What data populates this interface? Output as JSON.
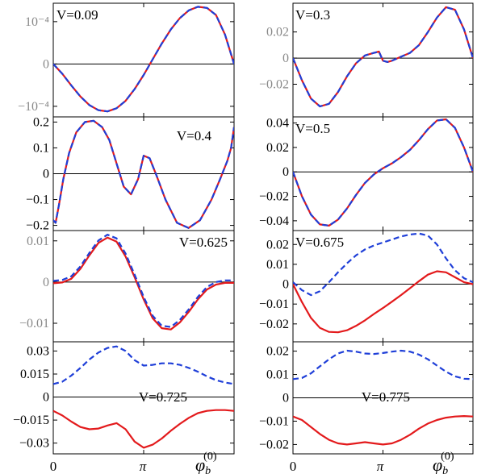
{
  "figure": {
    "xlabel_main": "φ",
    "xlabel_sub": "b",
    "xlabel_sup": "(0)",
    "x_ticks": [
      "0",
      "π"
    ]
  },
  "colors": {
    "solid": "#e31a1c",
    "dashed": "#1f3fd8",
    "axis": "#000000",
    "tick_gray": "#888888"
  },
  "chart_data": [
    {
      "type": "line",
      "label": "V=0.09",
      "ylim": [
        -0.00135,
        0.00155
      ],
      "yticks": [
        {
          "v": 0.00108,
          "label": "10^-4",
          "gray": true
        },
        {
          "v": 0,
          "label": "0",
          "gray": true
        },
        {
          "v": -0.00108,
          "label": "-10^-4",
          "gray": true
        }
      ],
      "x": [
        0,
        0.314,
        0.628,
        0.942,
        1.257,
        1.571,
        1.885,
        2.199,
        2.513,
        2.827,
        3.142,
        3.456,
        3.77,
        4.084,
        4.398,
        4.712,
        5.027,
        5.341,
        5.655,
        5.969,
        6.283
      ],
      "series": [
        {
          "style": "solid",
          "values": [
            0,
            -0.00025,
            -0.00055,
            -0.00083,
            -0.00105,
            -0.00118,
            -0.00121,
            -0.00113,
            -0.00094,
            -0.00064,
            -0.00028,
            0.00012,
            0.00052,
            0.00088,
            0.00117,
            0.00137,
            0.00146,
            0.00143,
            0.00125,
            0.00075,
            0
          ]
        },
        {
          "style": "dashed",
          "values": [
            0,
            -0.00025,
            -0.00055,
            -0.00083,
            -0.00105,
            -0.00118,
            -0.00121,
            -0.00113,
            -0.00094,
            -0.00064,
            -0.00028,
            0.00012,
            0.00052,
            0.00088,
            0.00117,
            0.00137,
            0.00146,
            0.00143,
            0.00125,
            0.00075,
            0
          ]
        }
      ]
    },
    {
      "type": "line",
      "label": "V=0.3",
      "ylim": [
        -0.045,
        0.042
      ],
      "yticks": [
        {
          "v": 0.02,
          "label": "0.02",
          "gray": true
        },
        {
          "v": 0,
          "label": "0",
          "gray": true
        },
        {
          "v": -0.02,
          "label": "-0.02",
          "gray": true
        }
      ],
      "x": [
        0,
        0.314,
        0.628,
        0.942,
        1.257,
        1.571,
        1.885,
        2.199,
        2.513,
        2.827,
        3.0,
        3.142,
        3.3,
        3.456,
        3.77,
        4.084,
        4.398,
        4.712,
        5.027,
        5.341,
        5.655,
        5.969,
        6.283
      ],
      "series": [
        {
          "style": "solid",
          "values": [
            0,
            -0.017,
            -0.031,
            -0.037,
            -0.035,
            -0.026,
            -0.014,
            -0.004,
            0.002,
            0.004,
            0.005,
            -0.002,
            -0.003,
            -0.002,
            0.001,
            0.004,
            0.01,
            0.02,
            0.031,
            0.039,
            0.037,
            0.022,
            0
          ]
        },
        {
          "style": "dashed",
          "values": [
            0,
            -0.017,
            -0.031,
            -0.037,
            -0.035,
            -0.026,
            -0.014,
            -0.004,
            0.002,
            0.004,
            0.005,
            -0.002,
            -0.003,
            -0.002,
            0.001,
            0.004,
            0.01,
            0.02,
            0.031,
            0.039,
            0.037,
            0.022,
            0
          ]
        }
      ]
    },
    {
      "type": "line",
      "label": "V=0.4",
      "ylim": [
        -0.22,
        0.22
      ],
      "yticks": [
        {
          "v": 0.2,
          "label": "0.2"
        },
        {
          "v": 0.1,
          "label": "0.1"
        },
        {
          "v": 0,
          "label": "0"
        },
        {
          "v": -0.1,
          "label": "-0.1"
        },
        {
          "v": -0.2,
          "label": "-0.2"
        }
      ],
      "x": [
        0,
        0.08,
        0.2,
        0.35,
        0.55,
        0.8,
        1.1,
        1.4,
        1.7,
        1.95,
        2.2,
        2.45,
        2.7,
        2.95,
        3.142,
        3.35,
        3.6,
        3.9,
        4.3,
        4.7,
        5.1,
        5.5,
        5.8,
        6.05,
        6.18,
        6.283
      ],
      "series": [
        {
          "style": "solid",
          "values": [
            -0.18,
            -0.19,
            -0.12,
            -0.02,
            0.08,
            0.16,
            0.2,
            0.205,
            0.18,
            0.13,
            0.04,
            -0.05,
            -0.08,
            -0.02,
            0.07,
            0.06,
            -0.01,
            -0.1,
            -0.19,
            -0.21,
            -0.18,
            -0.1,
            -0.02,
            0.05,
            0.1,
            0.18
          ]
        },
        {
          "style": "dashed",
          "values": [
            -0.18,
            -0.19,
            -0.12,
            -0.02,
            0.08,
            0.16,
            0.2,
            0.205,
            0.18,
            0.13,
            0.04,
            -0.05,
            -0.08,
            -0.02,
            0.07,
            0.06,
            -0.01,
            -0.1,
            -0.19,
            -0.21,
            -0.18,
            -0.1,
            -0.02,
            0.05,
            0.1,
            0.18
          ]
        }
      ]
    },
    {
      "type": "line",
      "label": "V=0.5",
      "ylim": [
        -0.048,
        0.045
      ],
      "yticks": [
        {
          "v": 0.04,
          "label": "0.04"
        },
        {
          "v": 0.02,
          "label": "0.02"
        },
        {
          "v": 0,
          "label": "0"
        },
        {
          "v": -0.02,
          "label": "-0.02"
        },
        {
          "v": -0.04,
          "label": "-0.04"
        }
      ],
      "x": [
        0,
        0.314,
        0.628,
        0.942,
        1.257,
        1.571,
        1.885,
        2.199,
        2.513,
        2.827,
        3.142,
        3.456,
        3.77,
        4.084,
        4.398,
        4.712,
        5.027,
        5.341,
        5.655,
        5.969,
        6.283
      ],
      "series": [
        {
          "style": "solid",
          "values": [
            0,
            -0.02,
            -0.035,
            -0.043,
            -0.044,
            -0.039,
            -0.03,
            -0.019,
            -0.009,
            -0.002,
            0.003,
            0.007,
            0.012,
            0.018,
            0.026,
            0.035,
            0.042,
            0.043,
            0.036,
            0.02,
            0
          ]
        },
        {
          "style": "dashed",
          "values": [
            0,
            -0.02,
            -0.035,
            -0.043,
            -0.044,
            -0.039,
            -0.03,
            -0.019,
            -0.009,
            -0.002,
            0.003,
            0.007,
            0.012,
            0.018,
            0.026,
            0.035,
            0.042,
            0.043,
            0.036,
            0.02,
            0
          ]
        }
      ]
    },
    {
      "type": "line",
      "label": "V=0.625",
      "ylim": [
        -0.0145,
        0.0125
      ],
      "yticks": [
        {
          "v": 0.01,
          "label": "0.01",
          "gray": true
        },
        {
          "v": 0,
          "label": "0",
          "gray": true
        },
        {
          "v": -0.01,
          "label": "-0.01",
          "gray": true
        }
      ],
      "x": [
        0,
        0.314,
        0.628,
        0.942,
        1.257,
        1.571,
        1.885,
        2.199,
        2.513,
        2.827,
        3.142,
        3.456,
        3.77,
        4.084,
        4.398,
        4.712,
        5.027,
        5.341,
        5.655,
        5.969,
        6.283
      ],
      "series": [
        {
          "style": "solid",
          "values": [
            -0.0003,
            -0.0001,
            0.0008,
            0.0032,
            0.0065,
            0.0095,
            0.0108,
            0.0098,
            0.0062,
            0.0012,
            -0.0042,
            -0.0088,
            -0.0112,
            -0.0115,
            -0.0098,
            -0.0072,
            -0.0042,
            -0.0018,
            -0.0006,
            -0.0002,
            -0.0002
          ]
        },
        {
          "style": "dashed",
          "values": [
            0.0003,
            0.0005,
            0.0014,
            0.0038,
            0.0071,
            0.0101,
            0.0115,
            0.0106,
            0.0069,
            0.0018,
            -0.0036,
            -0.0082,
            -0.0106,
            -0.0109,
            -0.0092,
            -0.0066,
            -0.0036,
            -0.0012,
            0.0,
            0.0004,
            0.0004
          ]
        }
      ]
    },
    {
      "type": "line",
      "label": "V=0.675",
      "ylim": [
        -0.029,
        0.027
      ],
      "yticks": [
        {
          "v": 0.02,
          "label": "0.02"
        },
        {
          "v": 0.01,
          "label": "0.01"
        },
        {
          "v": 0,
          "label": "0"
        },
        {
          "v": -0.01,
          "label": "-0.01"
        },
        {
          "v": -0.02,
          "label": "-0.02"
        }
      ],
      "x": [
        0,
        0.314,
        0.628,
        0.942,
        1.257,
        1.571,
        1.885,
        2.199,
        2.513,
        2.827,
        3.142,
        3.456,
        3.77,
        4.084,
        4.398,
        4.712,
        5.027,
        5.341,
        5.655,
        5.969,
        6.283
      ],
      "series": [
        {
          "style": "solid",
          "values": [
            0,
            -0.009,
            -0.017,
            -0.022,
            -0.024,
            -0.0242,
            -0.0232,
            -0.021,
            -0.0182,
            -0.015,
            -0.012,
            -0.0088,
            -0.0055,
            -0.002,
            0.0015,
            0.0048,
            0.0065,
            0.006,
            0.0035,
            0.001,
            0
          ]
        },
        {
          "style": "dashed",
          "values": [
            0.001,
            -0.003,
            -0.0055,
            -0.0035,
            0.001,
            0.006,
            0.0105,
            0.0145,
            0.0175,
            0.0195,
            0.021,
            0.0225,
            0.024,
            0.025,
            0.0255,
            0.0245,
            0.02,
            0.013,
            0.007,
            0.003,
            0.001
          ]
        }
      ]
    },
    {
      "type": "line",
      "label": "V=0.725",
      "ylim": [
        -0.037,
        0.036
      ],
      "split_panel": true,
      "yticks": [
        {
          "v": 0.03,
          "label": "0.03"
        },
        {
          "v": 0.015,
          "label": "0.015"
        },
        {
          "v": 0,
          "label": "0"
        },
        {
          "v": -0.015,
          "label": "-0.015"
        },
        {
          "v": -0.03,
          "label": "-0.03"
        }
      ],
      "x": [
        0,
        0.314,
        0.628,
        0.942,
        1.257,
        1.571,
        1.885,
        2.199,
        2.513,
        2.827,
        3.142,
        3.456,
        3.77,
        4.084,
        4.398,
        4.712,
        5.027,
        5.341,
        5.655,
        5.969,
        6.283
      ],
      "series": [
        {
          "style": "solid",
          "values": [
            -0.009,
            -0.012,
            -0.016,
            -0.0195,
            -0.021,
            -0.0205,
            -0.0185,
            -0.017,
            -0.021,
            -0.029,
            -0.033,
            -0.031,
            -0.027,
            -0.022,
            -0.0175,
            -0.0135,
            -0.0105,
            -0.009,
            -0.0085,
            -0.0085,
            -0.009
          ]
        },
        {
          "style": "dashed",
          "values": [
            0.0085,
            0.01,
            0.014,
            0.019,
            0.0245,
            0.029,
            0.032,
            0.033,
            0.03,
            0.024,
            0.0205,
            0.021,
            0.022,
            0.022,
            0.021,
            0.019,
            0.0165,
            0.0135,
            0.011,
            0.0095,
            0.0085
          ]
        }
      ]
    },
    {
      "type": "line",
      "label": "V=0.775",
      "ylim": [
        -0.024,
        0.024
      ],
      "split_panel": true,
      "yticks": [
        {
          "v": 0.02,
          "label": "0.02"
        },
        {
          "v": 0.01,
          "label": "0.01"
        },
        {
          "v": 0,
          "label": "0"
        },
        {
          "v": -0.01,
          "label": "-0.01"
        },
        {
          "v": -0.02,
          "label": "-0.02"
        }
      ],
      "x": [
        0,
        0.314,
        0.628,
        0.942,
        1.257,
        1.571,
        1.885,
        2.199,
        2.513,
        2.827,
        3.142,
        3.456,
        3.77,
        4.084,
        4.398,
        4.712,
        5.027,
        5.341,
        5.655,
        5.969,
        6.283
      ],
      "series": [
        {
          "style": "solid",
          "values": [
            -0.008,
            -0.0095,
            -0.0125,
            -0.0155,
            -0.018,
            -0.0195,
            -0.02,
            -0.0195,
            -0.019,
            -0.0195,
            -0.02,
            -0.0195,
            -0.018,
            -0.0158,
            -0.0132,
            -0.011,
            -0.0095,
            -0.0085,
            -0.008,
            -0.0078,
            -0.008
          ]
        },
        {
          "style": "dashed",
          "values": [
            0.008,
            0.0085,
            0.0105,
            0.0135,
            0.0165,
            0.019,
            0.0202,
            0.0198,
            0.019,
            0.0188,
            0.0192,
            0.0198,
            0.0202,
            0.0198,
            0.0185,
            0.0165,
            0.0138,
            0.0112,
            0.0092,
            0.0082,
            0.008
          ]
        }
      ]
    }
  ]
}
